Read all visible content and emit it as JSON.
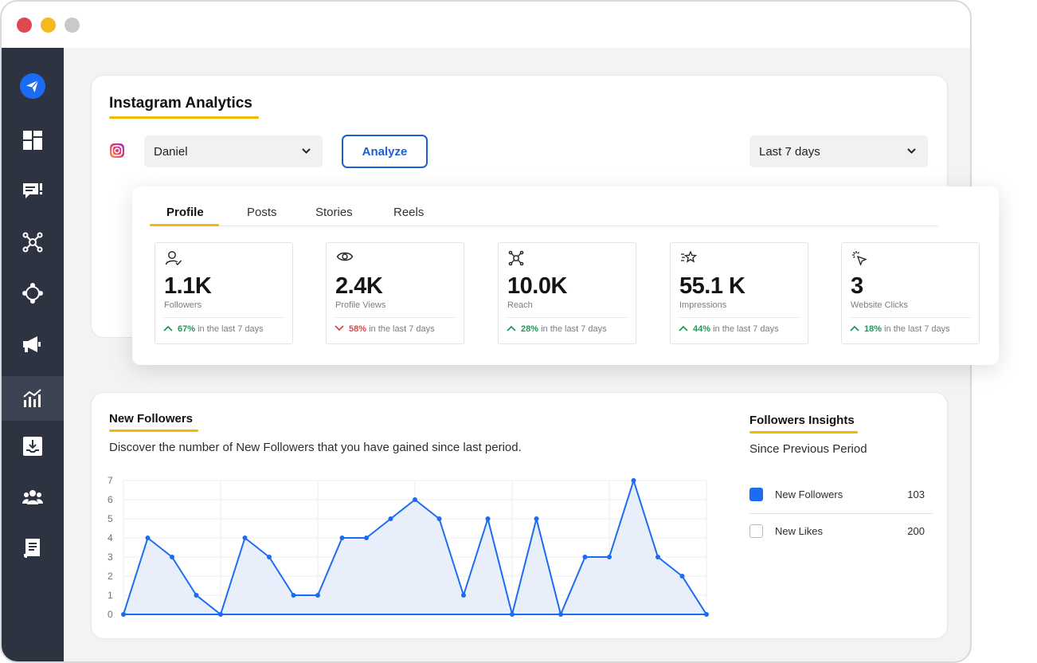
{
  "window": {
    "controls": [
      "close",
      "minimize",
      "zoom"
    ]
  },
  "sidebar": {
    "items": [
      {
        "icon": "send-icon",
        "active": false
      },
      {
        "icon": "dashboard-icon",
        "active": false
      },
      {
        "icon": "messages-icon",
        "active": false
      },
      {
        "icon": "network-icon",
        "active": false
      },
      {
        "icon": "hub-icon",
        "active": false
      },
      {
        "icon": "megaphone-icon",
        "active": false
      },
      {
        "icon": "analytics-icon",
        "active": true
      },
      {
        "icon": "download-icon",
        "active": false
      },
      {
        "icon": "team-icon",
        "active": false
      },
      {
        "icon": "report-icon",
        "active": false
      }
    ],
    "colors": {
      "bg": "#2d3340",
      "active": "#3c4352",
      "brand": "#1b6cf2"
    }
  },
  "analytics": {
    "title": "Instagram Analytics",
    "account": "Daniel",
    "analyze_label": "Analyze",
    "range": "Last 7 days"
  },
  "tabs": [
    {
      "label": "Profile",
      "active": true
    },
    {
      "label": "Posts",
      "active": false
    },
    {
      "label": "Stories",
      "active": false
    },
    {
      "label": "Reels",
      "active": false
    }
  ],
  "metrics": [
    {
      "icon": "user-check-icon",
      "value": "1.1K",
      "label": "Followers",
      "pct": "67%",
      "dir": "up",
      "suffix": "in the last 7 days"
    },
    {
      "icon": "eye-icon",
      "value": "2.4K",
      "label": "Profile Views",
      "pct": "58%",
      "dir": "down",
      "suffix": "in the last 7 days"
    },
    {
      "icon": "reach-icon",
      "value": "10.0K",
      "label": "Reach",
      "pct": "28%",
      "dir": "up",
      "suffix": "in the last 7 days"
    },
    {
      "icon": "sparkle-star-icon",
      "value": "55.1 K",
      "label": "Impressions",
      "pct": "44%",
      "dir": "up",
      "suffix": "in the last 7 days"
    },
    {
      "icon": "cursor-click-icon",
      "value": "3",
      "label": "Website Clicks",
      "pct": "18%",
      "dir": "up",
      "suffix": "in the last 7 days"
    }
  ],
  "followers": {
    "title": "New Followers",
    "description": "Discover the number of New Followers that you have gained since last period."
  },
  "insights": {
    "title": "Followers Insights",
    "subtitle": "Since Previous Period",
    "rows": [
      {
        "name": "New Followers",
        "value": "103",
        "checked": true
      },
      {
        "name": "New Likes",
        "value": "200",
        "checked": false
      }
    ]
  },
  "chart_data": {
    "type": "area",
    "title": "",
    "xlabel": "",
    "ylabel": "",
    "ylim": [
      0,
      7
    ],
    "yticks": [
      "0",
      "1",
      "2",
      "3",
      "4",
      "5",
      "6",
      "7"
    ],
    "grid": true,
    "series": [
      {
        "values": [
          0,
          4,
          3,
          1,
          0,
          4,
          3,
          1,
          1,
          4,
          4,
          5,
          6,
          5,
          1,
          5,
          0,
          5,
          0,
          3,
          3,
          7,
          3,
          2,
          0
        ],
        "color": "#1b6cf2",
        "fill": "#e8effa"
      }
    ]
  },
  "colors": {
    "accent": "#f5b800",
    "up": "#1f9a57",
    "down": "#e0464a",
    "button": "#1d5fd6"
  }
}
